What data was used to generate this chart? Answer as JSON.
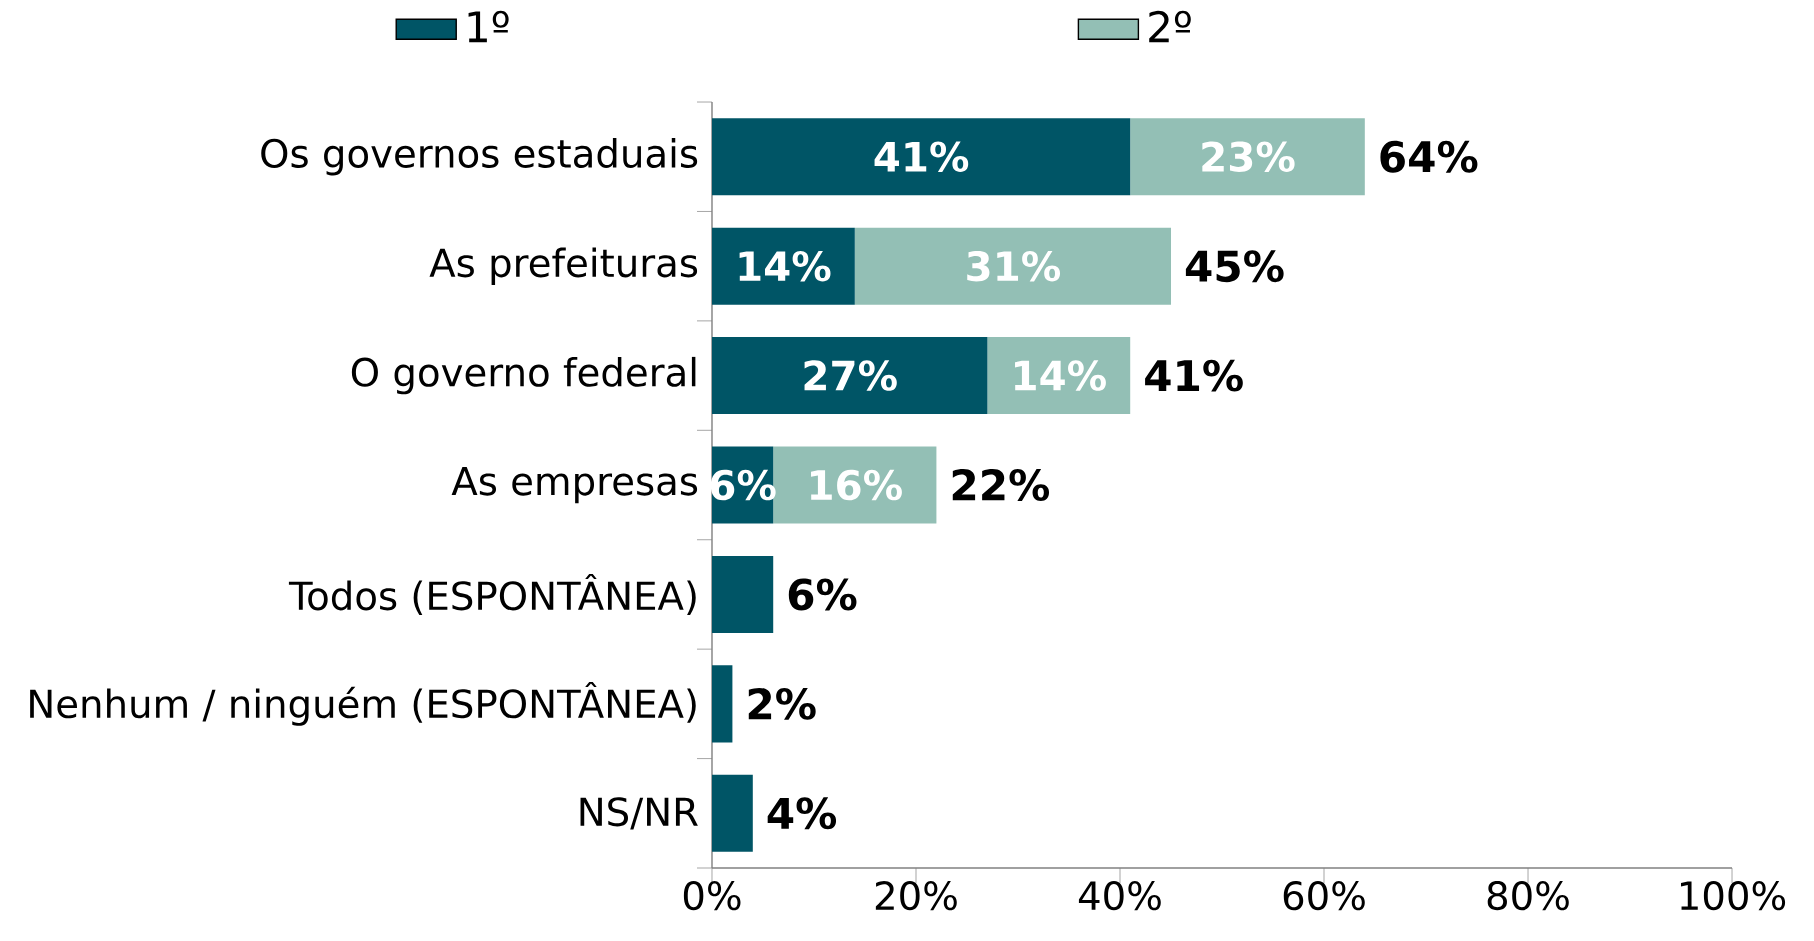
{
  "chart_data": {
    "type": "bar",
    "orientation": "horizontal",
    "stacked": true,
    "categories": [
      "Os governos estaduais",
      "As prefeituras",
      "O governo federal",
      "As empresas",
      "Todos (ESPONTÂNEA)",
      "Nenhum / ninguém (ESPONTÂNEA)",
      "NS/NR"
    ],
    "series": [
      {
        "name": "1º",
        "color": "#005566",
        "values": [
          41,
          14,
          27,
          6,
          6,
          2,
          4
        ],
        "value_labels": [
          "41%",
          "14%",
          "27%",
          "6%",
          null,
          null,
          null
        ]
      },
      {
        "name": "2º",
        "color": "#93bfb5",
        "values": [
          23,
          31,
          14,
          16,
          null,
          null,
          null
        ],
        "value_labels": [
          "23%",
          "31%",
          "14%",
          "16%",
          null,
          null,
          null
        ]
      }
    ],
    "totals": [
      "64%",
      "45%",
      "41%",
      "22%",
      "6%",
      "2%",
      "4%"
    ],
    "xlim": [
      0,
      100
    ],
    "xticks": [
      {
        "value": 0,
        "label": "0%"
      },
      {
        "value": 20,
        "label": "20%"
      },
      {
        "value": 40,
        "label": "40%"
      },
      {
        "value": 60,
        "label": "60%"
      },
      {
        "value": 80,
        "label": "80%"
      },
      {
        "value": 100,
        "label": "100%"
      }
    ],
    "legend": "top"
  }
}
